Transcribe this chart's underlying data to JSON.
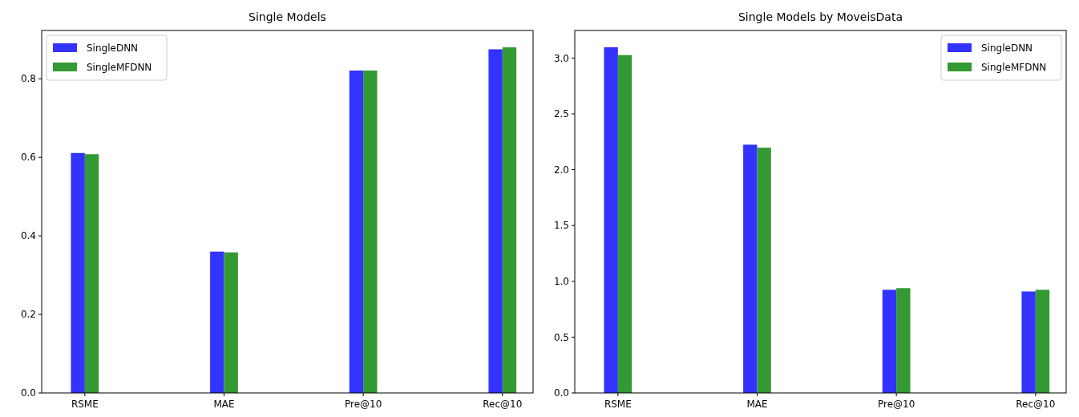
{
  "chart_data": [
    {
      "type": "bar",
      "title": "Single Models",
      "categories": [
        "RSME",
        "MAE",
        "Pre@10",
        "Rec@10"
      ],
      "series": [
        {
          "name": "SingleDNN",
          "color": "#3333ff",
          "values": [
            0.611,
            0.36,
            0.821,
            0.875
          ]
        },
        {
          "name": "SingleMFDNN",
          "color": "#339933",
          "values": [
            0.608,
            0.358,
            0.821,
            0.88
          ]
        }
      ],
      "ylim": [
        0,
        0.923
      ],
      "yticks": [
        {
          "value": 0,
          "label": "0.0"
        },
        0.2,
        0.4,
        0.6,
        0.8
      ],
      "grid": false,
      "legend": "top left"
    },
    {
      "type": "bar",
      "title": "Single Models by MoveisData",
      "categories": [
        "RSME",
        "MAE",
        "Pre@10",
        "Rec@10"
      ],
      "series": [
        {
          "name": "SingleDNN",
          "color": "#3333ff",
          "values": [
            3.097,
            2.224,
            0.924,
            0.909
          ]
        },
        {
          "name": "SingleMFDNN",
          "color": "#339933",
          "values": [
            3.027,
            2.197,
            0.939,
            0.924
          ]
        }
      ],
      "ylim": [
        0,
        3.247
      ],
      "yticks": [
        {
          "value": 0,
          "label": "0.0"
        },
        0.5,
        {
          "value": 1,
          "label": "1.0"
        },
        1.5,
        {
          "value": 2,
          "label": "2.0"
        },
        2.5,
        {
          "value": 3,
          "label": "3.0"
        }
      ],
      "grid": false,
      "legend": "top right"
    }
  ]
}
